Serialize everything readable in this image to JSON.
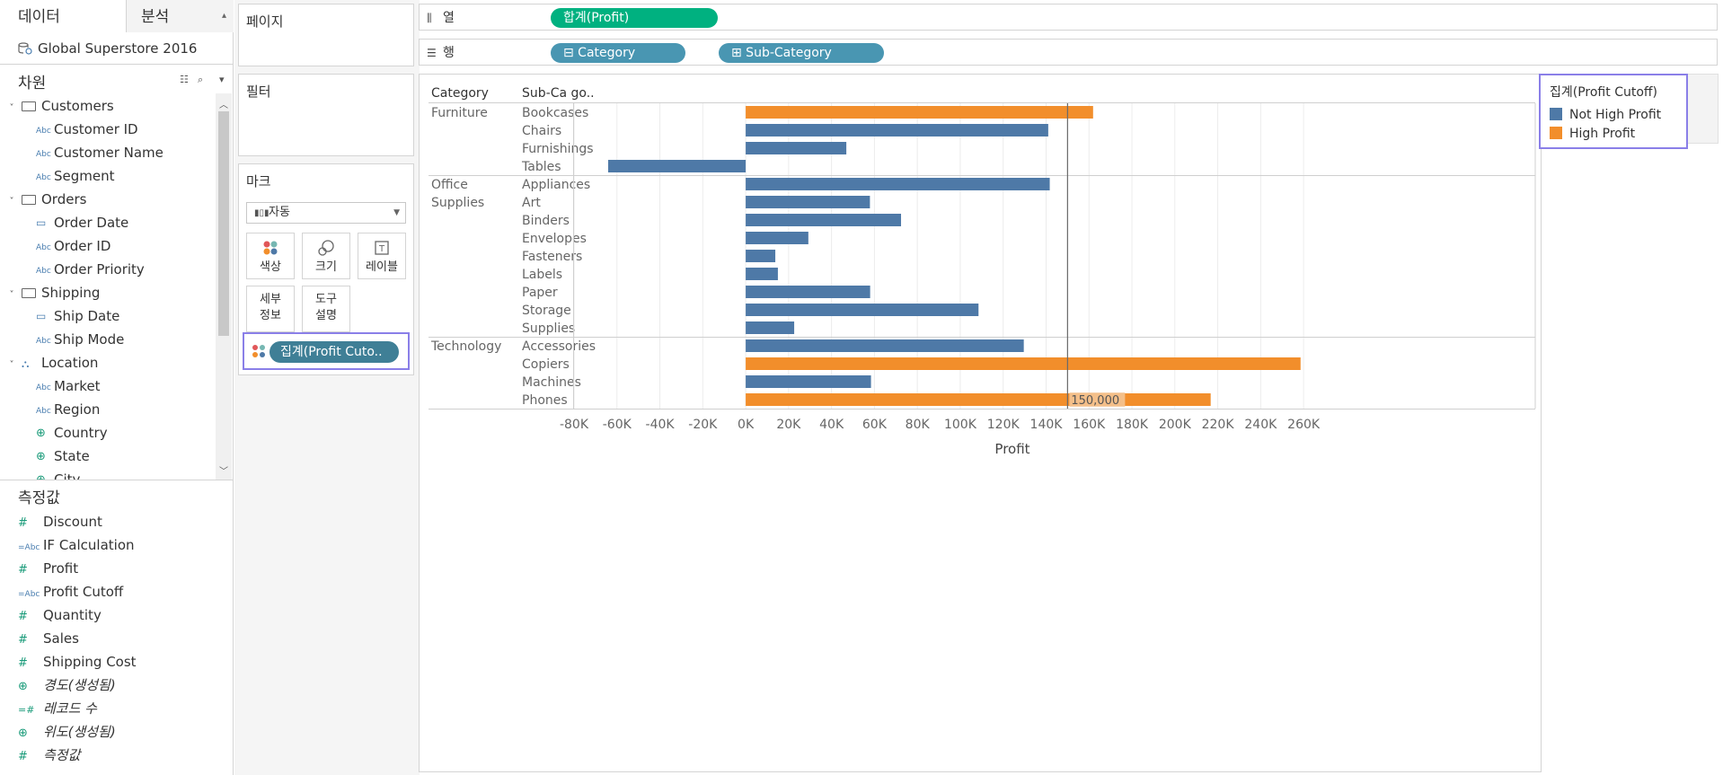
{
  "data_pane": {
    "tabs": [
      "데이터",
      "분석"
    ],
    "datasource": "Global Superstore 2016",
    "dimensions_label": "차원",
    "dimension_tree": [
      {
        "kind": "folder",
        "label": "Customers"
      },
      {
        "kind": "field",
        "type": "Abc",
        "label": "Customer ID"
      },
      {
        "kind": "field",
        "type": "Abc",
        "label": "Customer Name"
      },
      {
        "kind": "field",
        "type": "Abc",
        "label": "Segment"
      },
      {
        "kind": "folder",
        "label": "Orders"
      },
      {
        "kind": "field",
        "type": "date",
        "label": "Order Date"
      },
      {
        "kind": "field",
        "type": "Abc",
        "label": "Order ID"
      },
      {
        "kind": "field",
        "type": "Abc",
        "label": "Order Priority"
      },
      {
        "kind": "folder",
        "label": "Shipping"
      },
      {
        "kind": "field",
        "type": "date",
        "label": "Ship Date"
      },
      {
        "kind": "field",
        "type": "Abc",
        "label": "Ship Mode"
      },
      {
        "kind": "hierarchy",
        "label": "Location"
      },
      {
        "kind": "field",
        "type": "Abc",
        "label": "Market"
      },
      {
        "kind": "field",
        "type": "Abc",
        "label": "Region"
      },
      {
        "kind": "field",
        "type": "geo",
        "label": "Country"
      },
      {
        "kind": "field",
        "type": "geo",
        "label": "State"
      },
      {
        "kind": "field",
        "type": "geo",
        "label": "City"
      }
    ],
    "measures_label": "측정값",
    "measures": [
      {
        "type": "#",
        "label": "Discount",
        "italic": false
      },
      {
        "type": "=Abc",
        "label": "IF Calculation",
        "italic": false
      },
      {
        "type": "#",
        "label": "Profit",
        "italic": false
      },
      {
        "type": "=Abc",
        "label": "Profit Cutoff",
        "italic": false
      },
      {
        "type": "#",
        "label": "Quantity",
        "italic": false
      },
      {
        "type": "#",
        "label": "Sales",
        "italic": false
      },
      {
        "type": "#",
        "label": "Shipping Cost",
        "italic": false
      },
      {
        "type": "geo",
        "label": "경도(생성됨)",
        "italic": true
      },
      {
        "type": "=#",
        "label": "레코드 수",
        "italic": true
      },
      {
        "type": "geo",
        "label": "위도(생성됨)",
        "italic": true
      },
      {
        "type": "#",
        "label": "측정값",
        "italic": true
      }
    ]
  },
  "cards": {
    "pages": "페이지",
    "filters": "필터",
    "marks": "마크",
    "mark_type": "자동",
    "mark_buttons": [
      {
        "id": "color",
        "lines": [
          "색상"
        ]
      },
      {
        "id": "size",
        "lines": [
          "크기"
        ]
      },
      {
        "id": "label",
        "lines": [
          "레이블"
        ]
      },
      {
        "id": "detail",
        "lines": [
          "세부",
          "정보"
        ]
      },
      {
        "id": "tooltip",
        "lines": [
          "도구",
          "설명"
        ]
      }
    ],
    "marks_pill": "집계(Profit Cuto.."
  },
  "shelves": {
    "columns_label": "열",
    "rows_label": "행",
    "columns_pills": [
      "합계(Profit)"
    ],
    "rows_pills": [
      "⊟ Category",
      "⊞ Sub-Category"
    ]
  },
  "legend": {
    "title": "집계(Profit Cutoff)",
    "items": [
      {
        "label": "Not High Profit",
        "color": "#4e79a7"
      },
      {
        "label": "High Profit",
        "color": "#f28e2b"
      }
    ]
  },
  "chart_data": {
    "type": "bar",
    "orientation": "horizontal",
    "row_headers": [
      "Category",
      "Sub-Category"
    ],
    "sub_header_display": "Sub-Ca go..",
    "groups": [
      {
        "category": [
          "Furniture"
        ],
        "items": [
          {
            "sub": "Bookcases",
            "value": 161900,
            "class": "High Profit"
          },
          {
            "sub": "Chairs",
            "value": 141000,
            "class": "Not High Profit"
          },
          {
            "sub": "Furnishings",
            "value": 46900,
            "class": "Not High Profit"
          },
          {
            "sub": "Tables",
            "value": -64100,
            "class": "Not High Profit"
          }
        ]
      },
      {
        "category": [
          "Office",
          "Supplies"
        ],
        "items": [
          {
            "sub": "Appliances",
            "value": 141700,
            "class": "Not High Profit"
          },
          {
            "sub": "Art",
            "value": 57900,
            "class": "Not High Profit"
          },
          {
            "sub": "Binders",
            "value": 72400,
            "class": "Not High Profit"
          },
          {
            "sub": "Envelopes",
            "value": 29200,
            "class": "Not High Profit"
          },
          {
            "sub": "Fasteners",
            "value": 13800,
            "class": "Not High Profit"
          },
          {
            "sub": "Labels",
            "value": 15000,
            "class": "Not High Profit"
          },
          {
            "sub": "Paper",
            "value": 58000,
            "class": "Not High Profit"
          },
          {
            "sub": "Storage",
            "value": 108500,
            "class": "Not High Profit"
          },
          {
            "sub": "Supplies",
            "value": 22600,
            "class": "Not High Profit"
          }
        ]
      },
      {
        "category": [
          "Technology"
        ],
        "items": [
          {
            "sub": "Accessories",
            "value": 129600,
            "class": "Not High Profit"
          },
          {
            "sub": "Copiers",
            "value": 258600,
            "class": "High Profit"
          },
          {
            "sub": "Machines",
            "value": 58400,
            "class": "Not High Profit"
          },
          {
            "sub": "Phones",
            "value": 216700,
            "class": "High Profit"
          }
        ]
      }
    ],
    "xlim": [
      -80000,
      270000
    ],
    "ticks": [
      {
        "v": -80000,
        "label": "-80K"
      },
      {
        "v": -60000,
        "label": "-60K"
      },
      {
        "v": -40000,
        "label": "-40K"
      },
      {
        "v": -20000,
        "label": "-20K"
      },
      {
        "v": 0,
        "label": "0K"
      },
      {
        "v": 20000,
        "label": "20K"
      },
      {
        "v": 40000,
        "label": "40K"
      },
      {
        "v": 60000,
        "label": "60K"
      },
      {
        "v": 80000,
        "label": "80K"
      },
      {
        "v": 100000,
        "label": "100K"
      },
      {
        "v": 120000,
        "label": "120K"
      },
      {
        "v": 140000,
        "label": "140K"
      },
      {
        "v": 160000,
        "label": "160K"
      },
      {
        "v": 180000,
        "label": "180K"
      },
      {
        "v": 200000,
        "label": "200K"
      },
      {
        "v": 220000,
        "label": "220K"
      },
      {
        "v": 240000,
        "label": "240K"
      },
      {
        "v": 260000,
        "label": "260K"
      }
    ],
    "xlabel": "Profit",
    "reference_line": {
      "value": 150000,
      "label": "150,000"
    },
    "colors": {
      "Not High Profit": "#4e79a7",
      "High Profit": "#f28e2b"
    }
  }
}
